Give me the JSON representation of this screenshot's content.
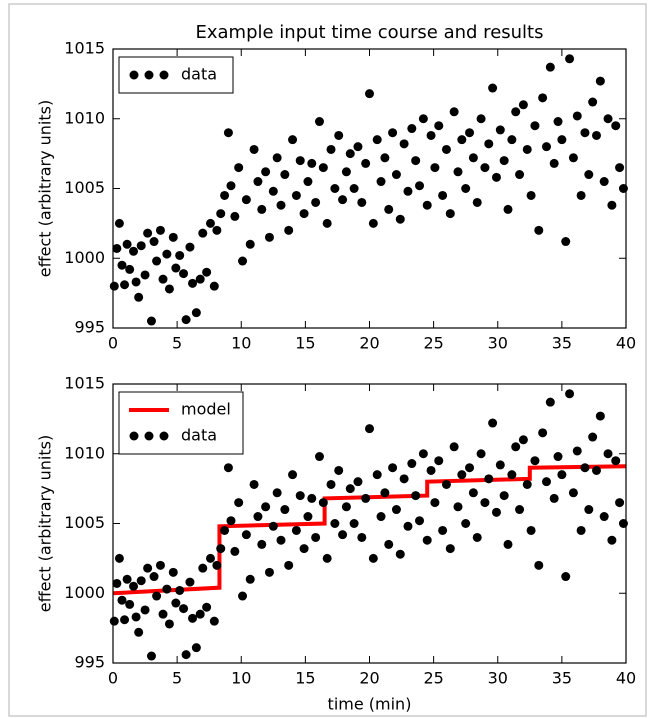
{
  "chart_data": [
    {
      "type": "scatter",
      "title": "Example input time course and results",
      "ylabel": "effect (arbitrary units)",
      "xlim": [
        0,
        40
      ],
      "xticks": [
        0,
        5,
        10,
        15,
        20,
        25,
        30,
        35,
        40
      ],
      "ylim": [
        995,
        1015
      ],
      "yticks": [
        995,
        1000,
        1005,
        1010,
        1015
      ],
      "legend": "upper left",
      "series": [
        {
          "name": "data",
          "color": "#000000",
          "mark": "point",
          "x": [
            0.1,
            0.3,
            0.5,
            0.7,
            0.9,
            1.1,
            1.3,
            1.6,
            1.8,
            2.0,
            2.2,
            2.5,
            2.7,
            3.0,
            3.2,
            3.4,
            3.7,
            3.9,
            4.2,
            4.4,
            4.7,
            4.9,
            5.2,
            5.5,
            5.7,
            6.0,
            6.2,
            6.5,
            6.8,
            7.0,
            7.3,
            7.6,
            7.9,
            8.1,
            8.4,
            8.7,
            9.0,
            9.2,
            9.5,
            9.8,
            10.1,
            10.4,
            10.7,
            11.0,
            11.3,
            11.6,
            11.9,
            12.2,
            12.5,
            12.8,
            13.1,
            13.4,
            13.7,
            14.0,
            14.3,
            14.6,
            14.9,
            15.2,
            15.5,
            15.8,
            16.1,
            16.4,
            16.7,
            17.0,
            17.3,
            17.6,
            17.9,
            18.2,
            18.5,
            18.8,
            19.1,
            19.4,
            19.7,
            20.0,
            20.3,
            20.6,
            20.9,
            21.2,
            21.5,
            21.8,
            22.1,
            22.4,
            22.7,
            23.0,
            23.3,
            23.6,
            23.9,
            24.2,
            24.5,
            24.8,
            25.1,
            25.4,
            25.7,
            26.0,
            26.3,
            26.6,
            26.9,
            27.2,
            27.5,
            27.8,
            28.1,
            28.4,
            28.7,
            29.0,
            29.3,
            29.6,
            29.9,
            30.2,
            30.5,
            30.8,
            31.1,
            31.4,
            31.7,
            32.0,
            32.3,
            32.6,
            32.9,
            33.2,
            33.5,
            33.8,
            34.1,
            34.4,
            34.7,
            35.0,
            35.3,
            35.6,
            35.9,
            36.2,
            36.5,
            36.8,
            37.1,
            37.4,
            37.7,
            38.0,
            38.3,
            38.6,
            38.9,
            39.2,
            39.5,
            39.8
          ],
          "values": [
            998.0,
            1000.7,
            1002.5,
            999.5,
            998.1,
            1001.0,
            999.2,
            1000.5,
            998.3,
            997.2,
            1000.9,
            998.8,
            1001.8,
            995.5,
            1001.2,
            999.8,
            1002.0,
            998.5,
            1000.3,
            997.8,
            1001.5,
            999.3,
            1000.2,
            998.9,
            995.6,
            1000.8,
            998.2,
            996.1,
            998.5,
            1001.8,
            999.0,
            1002.5,
            998.0,
            1002.0,
            1003.2,
            1004.5,
            1009.0,
            1005.2,
            1003.0,
            1006.5,
            999.8,
            1004.2,
            1001.0,
            1007.8,
            1005.5,
            1003.5,
            1006.2,
            1001.5,
            1004.8,
            1007.2,
            1003.8,
            1006.0,
            1002.0,
            1008.5,
            1004.5,
            1007.0,
            1003.2,
            1005.5,
            1006.8,
            1004.0,
            1009.8,
            1006.5,
            1002.5,
            1007.8,
            1005.0,
            1008.8,
            1004.2,
            1006.2,
            1007.5,
            1005.0,
            1008.0,
            1004.0,
            1006.8,
            1011.8,
            1002.5,
            1008.5,
            1005.5,
            1007.2,
            1003.5,
            1009.0,
            1006.0,
            1002.8,
            1008.2,
            1004.8,
            1009.3,
            1007.0,
            1005.2,
            1010.0,
            1003.8,
            1008.8,
            1006.5,
            1009.5,
            1004.5,
            1007.8,
            1003.2,
            1010.5,
            1006.2,
            1008.5,
            1005.0,
            1009.0,
            1007.2,
            1004.0,
            1010.0,
            1006.5,
            1008.2,
            1012.2,
            1005.8,
            1009.2,
            1007.0,
            1003.5,
            1008.5,
            1010.5,
            1006.0,
            1011.0,
            1007.8,
            1004.5,
            1009.5,
            1002.0,
            1011.5,
            1008.0,
            1013.7,
            1006.8,
            1009.8,
            1008.5,
            1001.2,
            1014.3,
            1007.2,
            1010.2,
            1004.5,
            1009.0,
            1006.0,
            1011.2,
            1008.8,
            1012.7,
            1005.5,
            1010.0,
            1003.8,
            1009.5,
            1006.5,
            1005.0
          ]
        }
      ]
    },
    {
      "type": "scatter",
      "ylabel": "effect (arbitrary units)",
      "xlabel": "time (min)",
      "xlim": [
        0,
        40
      ],
      "xticks": [
        0,
        5,
        10,
        15,
        20,
        25,
        30,
        35,
        40
      ],
      "ylim": [
        995,
        1015
      ],
      "yticks": [
        995,
        1000,
        1005,
        1010,
        1015
      ],
      "legend": "upper left",
      "series": [
        {
          "name": "model",
          "color": "#ff0000",
          "mark": "line",
          "x": [
            0,
            8.3,
            8.3,
            16.5,
            16.5,
            24.5,
            24.5,
            32.5,
            32.5,
            40
          ],
          "values": [
            1000.0,
            1000.4,
            1004.8,
            1005.0,
            1006.8,
            1007.0,
            1008.0,
            1008.2,
            1009.0,
            1009.1
          ]
        },
        {
          "name": "data",
          "color": "#000000",
          "mark": "point",
          "x": [
            0.1,
            0.3,
            0.5,
            0.7,
            0.9,
            1.1,
            1.3,
            1.6,
            1.8,
            2.0,
            2.2,
            2.5,
            2.7,
            3.0,
            3.2,
            3.4,
            3.7,
            3.9,
            4.2,
            4.4,
            4.7,
            4.9,
            5.2,
            5.5,
            5.7,
            6.0,
            6.2,
            6.5,
            6.8,
            7.0,
            7.3,
            7.6,
            7.9,
            8.1,
            8.4,
            8.7,
            9.0,
            9.2,
            9.5,
            9.8,
            10.1,
            10.4,
            10.7,
            11.0,
            11.3,
            11.6,
            11.9,
            12.2,
            12.5,
            12.8,
            13.1,
            13.4,
            13.7,
            14.0,
            14.3,
            14.6,
            14.9,
            15.2,
            15.5,
            15.8,
            16.1,
            16.4,
            16.7,
            17.0,
            17.3,
            17.6,
            17.9,
            18.2,
            18.5,
            18.8,
            19.1,
            19.4,
            19.7,
            20.0,
            20.3,
            20.6,
            20.9,
            21.2,
            21.5,
            21.8,
            22.1,
            22.4,
            22.7,
            23.0,
            23.3,
            23.6,
            23.9,
            24.2,
            24.5,
            24.8,
            25.1,
            25.4,
            25.7,
            26.0,
            26.3,
            26.6,
            26.9,
            27.2,
            27.5,
            27.8,
            28.1,
            28.4,
            28.7,
            29.0,
            29.3,
            29.6,
            29.9,
            30.2,
            30.5,
            30.8,
            31.1,
            31.4,
            31.7,
            32.0,
            32.3,
            32.6,
            32.9,
            33.2,
            33.5,
            33.8,
            34.1,
            34.4,
            34.7,
            35.0,
            35.3,
            35.6,
            35.9,
            36.2,
            36.5,
            36.8,
            37.1,
            37.4,
            37.7,
            38.0,
            38.3,
            38.6,
            38.9,
            39.2,
            39.5,
            39.8
          ],
          "values": [
            998.0,
            1000.7,
            1002.5,
            999.5,
            998.1,
            1001.0,
            999.2,
            1000.5,
            998.3,
            997.2,
            1000.9,
            998.8,
            1001.8,
            995.5,
            1001.2,
            999.8,
            1002.0,
            998.5,
            1000.3,
            997.8,
            1001.5,
            999.3,
            1000.2,
            998.9,
            995.6,
            1000.8,
            998.2,
            996.1,
            998.5,
            1001.8,
            999.0,
            1002.5,
            998.0,
            1002.0,
            1003.2,
            1004.5,
            1009.0,
            1005.2,
            1003.0,
            1006.5,
            999.8,
            1004.2,
            1001.0,
            1007.8,
            1005.5,
            1003.5,
            1006.2,
            1001.5,
            1004.8,
            1007.2,
            1003.8,
            1006.0,
            1002.0,
            1008.5,
            1004.5,
            1007.0,
            1003.2,
            1005.5,
            1006.8,
            1004.0,
            1009.8,
            1006.5,
            1002.5,
            1007.8,
            1005.0,
            1008.8,
            1004.2,
            1006.2,
            1007.5,
            1005.0,
            1008.0,
            1004.0,
            1006.8,
            1011.8,
            1002.5,
            1008.5,
            1005.5,
            1007.2,
            1003.5,
            1009.0,
            1006.0,
            1002.8,
            1008.2,
            1004.8,
            1009.3,
            1007.0,
            1005.2,
            1010.0,
            1003.8,
            1008.8,
            1006.5,
            1009.5,
            1004.5,
            1007.8,
            1003.2,
            1010.5,
            1006.2,
            1008.5,
            1005.0,
            1009.0,
            1007.2,
            1004.0,
            1010.0,
            1006.5,
            1008.2,
            1012.2,
            1005.8,
            1009.2,
            1007.0,
            1003.5,
            1008.5,
            1010.5,
            1006.0,
            1011.0,
            1007.8,
            1004.5,
            1009.5,
            1002.0,
            1011.5,
            1008.0,
            1013.7,
            1006.8,
            1009.8,
            1008.5,
            1001.2,
            1014.3,
            1007.2,
            1010.2,
            1004.5,
            1009.0,
            1006.0,
            1011.2,
            1008.8,
            1012.7,
            1005.5,
            1010.0,
            1003.8,
            1009.5,
            1006.5,
            1005.0
          ]
        }
      ]
    }
  ]
}
